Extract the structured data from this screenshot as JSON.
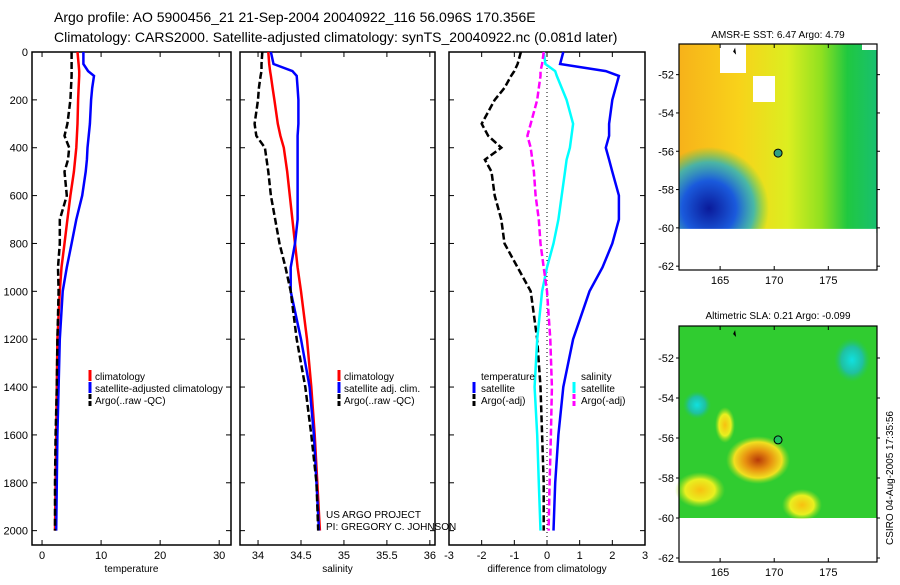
{
  "header": {
    "line1": "Argo profile: AO 5900456_21 21-Sep-2004 20040922_116 56.096S 170.356E",
    "line2": "Climatology: CARS2000. Satellite-adjusted climatology: synTS_20040922.nc (0.081d later)"
  },
  "credits": {
    "project": "US ARGO PROJECT",
    "pi": "PI: GREGORY C. JOHNSON",
    "stamp": "CSIRO 04-Aug-2005 17:35:56"
  },
  "colors": {
    "clim": "#ff0000",
    "sat": "#0000ff",
    "argo": "#000000",
    "sal_sat": "#00ffff",
    "sal_argo": "#ff00ff"
  },
  "chart_data": [
    {
      "type": "line",
      "id": "temperature",
      "xlabel": "temperature",
      "ylabel": "",
      "xlim": [
        -1.7,
        32
      ],
      "ylim": [
        2060,
        0
      ],
      "xticks": [
        "0",
        "10",
        "20",
        "30"
      ],
      "xtick_values": [
        0,
        10,
        20,
        30
      ],
      "yticks": [
        "0",
        "200",
        "400",
        "600",
        "800",
        "1000",
        "1200",
        "1400",
        "1600",
        "1800",
        "2000"
      ],
      "depth": [
        0,
        50,
        80,
        100,
        150,
        200,
        300,
        350,
        400,
        450,
        500,
        600,
        700,
        800,
        900,
        1000,
        1200,
        1400,
        1600,
        1800,
        2000
      ],
      "series": [
        {
          "name": "climatology",
          "color": "#ff0000",
          "dash": false,
          "values": [
            6,
            6.2,
            6.3,
            6.3,
            6.2,
            6.1,
            6.0,
            5.9,
            5.8,
            5.6,
            5.4,
            4.8,
            4.3,
            3.8,
            3.3,
            3.0,
            2.6,
            2.5,
            2.4,
            2.3,
            2.2
          ]
        },
        {
          "name": "satellite-adjusted climatology",
          "color": "#0000ff",
          "dash": false,
          "values": [
            7,
            7,
            7.8,
            8.8,
            8.5,
            8.3,
            8.1,
            7.9,
            7.7,
            7.6,
            7.4,
            6.8,
            5.8,
            5.0,
            4.2,
            3.5,
            3.0,
            2.8,
            2.6,
            2.5,
            2.4
          ]
        },
        {
          "name": "Argo(..raw -QC)",
          "color": "#000000",
          "dash": true,
          "values": [
            5,
            5,
            5,
            5,
            4.9,
            4.8,
            4.3,
            3.8,
            4.6,
            4.4,
            3.8,
            4.2,
            3.0,
            3.0,
            2.7,
            2.8,
            2.6,
            2.5,
            2.3,
            2.2,
            2.2
          ]
        }
      ]
    },
    {
      "type": "line",
      "id": "salinity",
      "xlabel": "salinity",
      "xlim": [
        33.79,
        36.06
      ],
      "ylim": [
        2060,
        0
      ],
      "xticks": [
        "34",
        "34.5",
        "35",
        "35.5",
        "36"
      ],
      "xtick_values": [
        34,
        34.5,
        35,
        35.5,
        36
      ],
      "depth": [
        0,
        50,
        80,
        100,
        150,
        200,
        300,
        350,
        400,
        450,
        500,
        600,
        700,
        800,
        900,
        1000,
        1200,
        1400,
        1600,
        1800,
        2000
      ],
      "series": [
        {
          "name": "climatology",
          "color": "#ff0000",
          "dash": false,
          "values": [
            34.12,
            34.13,
            34.14,
            34.15,
            34.17,
            34.19,
            34.23,
            34.26,
            34.3,
            34.32,
            34.34,
            34.37,
            34.4,
            34.43,
            34.46,
            34.5,
            34.57,
            34.62,
            34.66,
            34.69,
            34.72
          ]
        },
        {
          "name": "satellite adj. clim.",
          "color": "#0000ff",
          "dash": false,
          "values": [
            34.15,
            34.18,
            34.4,
            34.45,
            34.46,
            34.47,
            34.47,
            34.46,
            34.46,
            34.46,
            34.46,
            34.46,
            34.46,
            34.43,
            34.38,
            34.38,
            34.5,
            34.6,
            34.65,
            34.68,
            34.71
          ]
        },
        {
          "name": "Argo(..raw -QC)",
          "color": "#000000",
          "dash": true,
          "values": [
            34.05,
            34.04,
            34.04,
            34.03,
            34.01,
            34.0,
            33.96,
            33.98,
            34.08,
            34.1,
            34.12,
            34.15,
            34.2,
            34.25,
            34.32,
            34.38,
            34.45,
            34.55,
            34.62,
            34.68,
            34.7
          ]
        }
      ]
    },
    {
      "type": "line",
      "id": "difference",
      "xlabel": "difference from climatology",
      "xlim": [
        -3,
        3
      ],
      "ylim": [
        2060,
        0
      ],
      "xticks": [
        "-3",
        "-2",
        "-1",
        "0",
        "1",
        "2",
        "3"
      ],
      "xtick_values": [
        -3,
        -2,
        -1,
        0,
        1,
        2,
        3
      ],
      "legend_headers": [
        "temperature",
        "salinity"
      ],
      "depth": [
        0,
        50,
        80,
        100,
        150,
        200,
        300,
        350,
        400,
        450,
        500,
        600,
        700,
        800,
        900,
        1000,
        1200,
        1400,
        1600,
        1800,
        2000
      ],
      "series": [
        {
          "name": "satellite",
          "group": "temperature",
          "color": "#0000ff",
          "dash": false,
          "values": [
            0.5,
            0.4,
            1.8,
            2.2,
            2.1,
            2.0,
            1.9,
            1.9,
            1.8,
            1.9,
            2.0,
            2.2,
            2.2,
            2.0,
            1.7,
            1.3,
            0.8,
            0.5,
            0.35,
            0.25,
            0.2
          ]
        },
        {
          "name": "Argo(-adj)",
          "group": "temperature",
          "color": "#000000",
          "dash": true,
          "values": [
            -0.8,
            -0.9,
            -1.0,
            -1.1,
            -1.3,
            -1.6,
            -2.0,
            -1.8,
            -1.4,
            -1.9,
            -1.7,
            -1.6,
            -1.4,
            -1.3,
            -0.9,
            -0.5,
            -0.3,
            -0.2,
            -0.15,
            -0.1,
            -0.1
          ]
        },
        {
          "name": "satellite",
          "group": "salinity",
          "color": "#00ffff",
          "dash": false,
          "values": [
            -0.1,
            -0.05,
            0.25,
            0.3,
            0.45,
            0.6,
            0.8,
            0.75,
            0.7,
            0.6,
            0.55,
            0.45,
            0.35,
            0.2,
            0.0,
            -0.15,
            -0.3,
            -0.38,
            -0.3,
            -0.25,
            -0.2
          ]
        },
        {
          "name": "Argo(-adj)",
          "group": "salinity",
          "color": "#ff00ff",
          "dash": true,
          "values": [
            -0.1,
            -0.15,
            -0.2,
            -0.2,
            -0.25,
            -0.3,
            -0.5,
            -0.6,
            -0.5,
            -0.45,
            -0.4,
            -0.35,
            -0.25,
            -0.2,
            -0.1,
            0.0,
            0.1,
            0.15,
            0.12,
            0.08,
            0.05
          ]
        }
      ]
    },
    {
      "type": "heatmap",
      "id": "sst-map",
      "title": "AMSR-E SST: 6.47 Argo: 4.79",
      "xlim": [
        161.2,
        179.5
      ],
      "ylim": [
        -62.2,
        -50.4
      ],
      "xticks": [
        "165",
        "170",
        "175"
      ],
      "xtick_values": [
        165,
        170,
        175
      ],
      "yticks": [
        "-52",
        "-54",
        "-56",
        "-58",
        "-60",
        "-62"
      ],
      "ytick_values": [
        -52,
        -54,
        -56,
        -58,
        -60,
        -62
      ],
      "argo_position": [
        170.356,
        -56.096
      ]
    },
    {
      "type": "heatmap",
      "id": "sla-map",
      "title": "Altimetric SLA: 0.21 Argo: -0.099",
      "xlim": [
        161.2,
        179.5
      ],
      "ylim": [
        -62.2,
        -50.4
      ],
      "xticks": [
        "165",
        "170",
        "175"
      ],
      "xtick_values": [
        165,
        170,
        175
      ],
      "yticks": [
        "-52",
        "-54",
        "-56",
        "-58",
        "-60",
        "-62"
      ],
      "ytick_values": [
        -52,
        -54,
        -56,
        -58,
        -60,
        -62
      ],
      "argo_position": [
        170.356,
        -56.096
      ]
    }
  ]
}
